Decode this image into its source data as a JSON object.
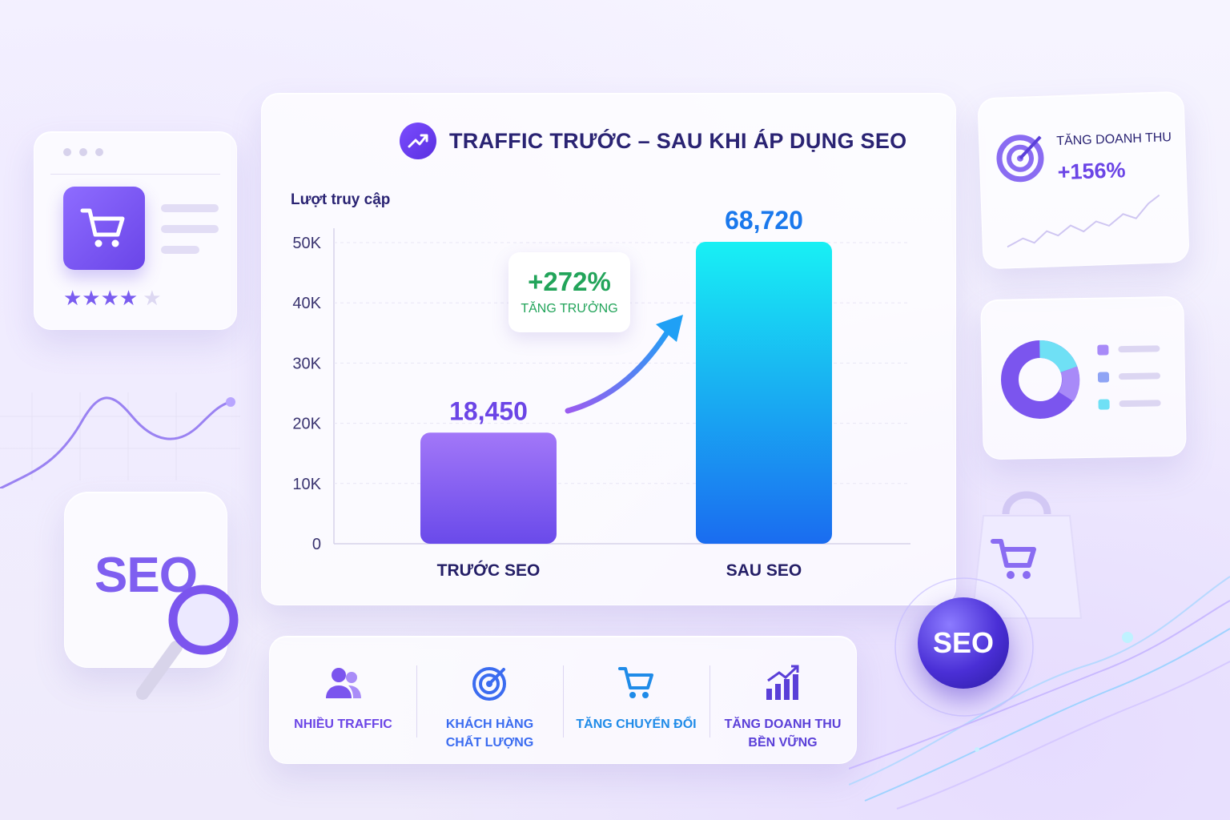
{
  "chart_data": {
    "type": "bar",
    "title": "TRAFFIC TRƯỚC – SAU KHI ÁP DỤNG SEO",
    "ylabel": "Lượt truy cập",
    "xlabel": "",
    "categories": [
      "TRƯỚC SEO",
      "SAU SEO"
    ],
    "values": [
      18450,
      68720
    ],
    "value_labels": [
      "18,450",
      "68,720"
    ],
    "yticks": [
      0,
      10000,
      20000,
      30000,
      40000,
      50000
    ],
    "ytick_labels": [
      "0",
      "10K",
      "20K",
      "30K",
      "40K",
      "50K"
    ],
    "ylim": [
      0,
      50000
    ],
    "grid": true,
    "bar_colors": [
      "#7b55ee",
      "#16a8f8"
    ],
    "annotation": {
      "value": "+272%",
      "label": "TĂNG TRƯỞNG",
      "color": "#22a45a"
    }
  },
  "benefits": [
    {
      "label": "NHIỀU TRAFFIC",
      "icon": "users-icon",
      "color": "#6b45e6"
    },
    {
      "label": "KHÁCH HÀNG\nCHẤT LƯỢNG",
      "icon": "target-icon",
      "color": "#3b6cf0"
    },
    {
      "label": "TĂNG CHUYỂN ĐỔI",
      "icon": "cart-icon",
      "color": "#1f8be8"
    },
    {
      "label": "TĂNG DOANH THU\nBỀN VỮNG",
      "icon": "bar-growth-icon",
      "color": "#5a3fd8"
    }
  ],
  "revenue_card": {
    "label": "TĂNG DOANH THU",
    "value": "+156%"
  },
  "decor": {
    "seo_cube_text": "SEO",
    "seo_orb_text": "SEO",
    "stars": "★★★★",
    "star_empty": "★"
  }
}
